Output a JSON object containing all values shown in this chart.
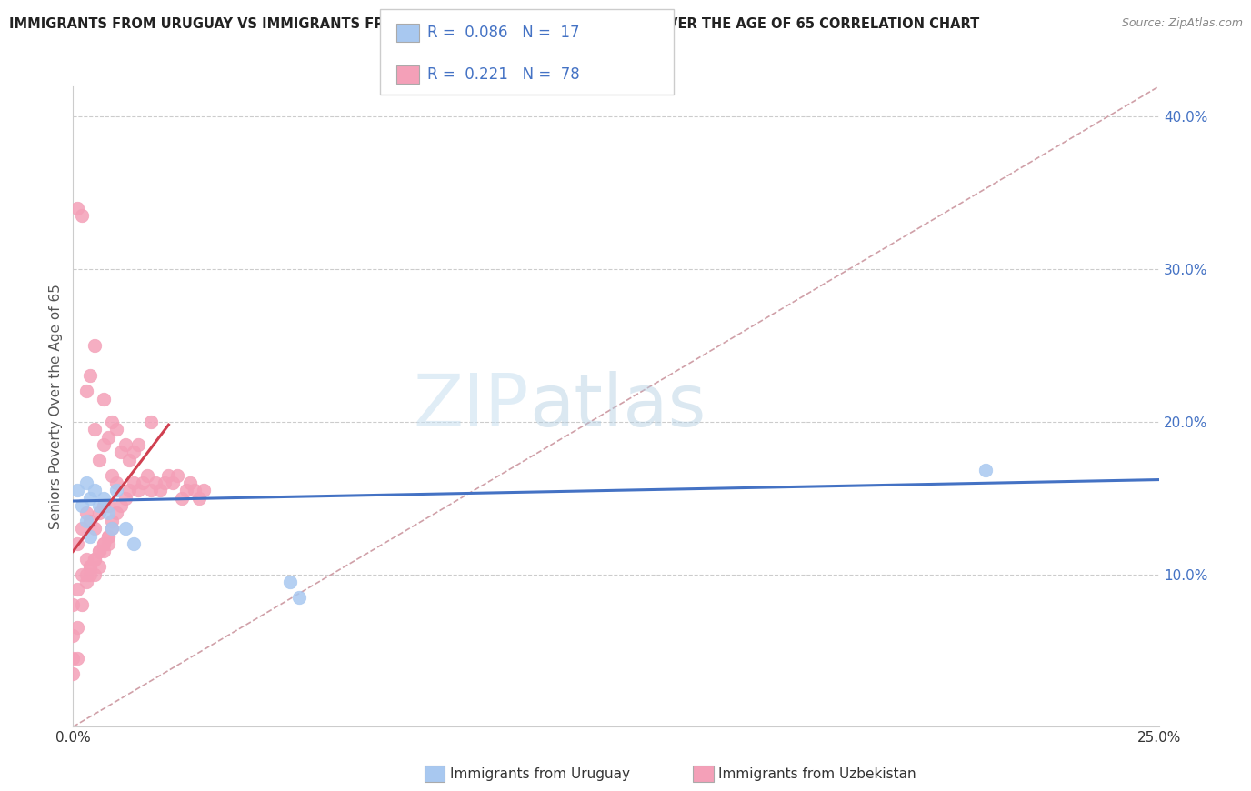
{
  "title": "IMMIGRANTS FROM URUGUAY VS IMMIGRANTS FROM UZBEKISTAN SENIORS POVERTY OVER THE AGE OF 65 CORRELATION CHART",
  "source": "Source: ZipAtlas.com",
  "ylabel": "Seniors Poverty Over the Age of 65",
  "xlim": [
    0.0,
    0.25
  ],
  "ylim": [
    0.0,
    0.42
  ],
  "r_uruguay": 0.086,
  "n_uruguay": 17,
  "r_uzbekistan": 0.221,
  "n_uzbekistan": 78,
  "color_uruguay": "#a8c8f0",
  "color_uzbekistan": "#f4a0b8",
  "line_color_uruguay": "#4472c4",
  "line_color_uzbekistan": "#d04050",
  "diagonal_color": "#d0a0a8",
  "watermark_zip": "ZIP",
  "watermark_atlas": "atlas",
  "legend_color": "#4472c4",
  "ytick_color": "#4472c4",
  "xtick_label_color": "#333333",
  "uruguay_x": [
    0.001,
    0.002,
    0.003,
    0.003,
    0.004,
    0.004,
    0.005,
    0.006,
    0.007,
    0.008,
    0.009,
    0.01,
    0.012,
    0.014,
    0.05,
    0.052,
    0.21
  ],
  "uruguay_y": [
    0.155,
    0.145,
    0.16,
    0.135,
    0.15,
    0.125,
    0.155,
    0.145,
    0.15,
    0.14,
    0.13,
    0.155,
    0.13,
    0.12,
    0.095,
    0.085,
    0.168
  ],
  "uzbekistan_x": [
    0.0,
    0.0,
    0.001,
    0.001,
    0.001,
    0.002,
    0.002,
    0.002,
    0.003,
    0.003,
    0.003,
    0.004,
    0.004,
    0.004,
    0.005,
    0.005,
    0.005,
    0.005,
    0.006,
    0.006,
    0.006,
    0.007,
    0.007,
    0.007,
    0.007,
    0.008,
    0.008,
    0.008,
    0.009,
    0.009,
    0.009,
    0.01,
    0.01,
    0.01,
    0.011,
    0.011,
    0.012,
    0.012,
    0.013,
    0.013,
    0.014,
    0.014,
    0.015,
    0.015,
    0.016,
    0.017,
    0.018,
    0.018,
    0.019,
    0.02,
    0.021,
    0.022,
    0.023,
    0.024,
    0.025,
    0.026,
    0.027,
    0.028,
    0.029,
    0.03,
    0.001,
    0.002,
    0.003,
    0.004,
    0.005,
    0.006,
    0.0,
    0.0,
    0.001,
    0.007,
    0.008,
    0.003,
    0.004,
    0.005,
    0.006,
    0.007,
    0.008,
    0.009
  ],
  "uzbekistan_y": [
    0.06,
    0.08,
    0.09,
    0.12,
    0.34,
    0.1,
    0.13,
    0.335,
    0.11,
    0.14,
    0.22,
    0.105,
    0.135,
    0.23,
    0.1,
    0.13,
    0.195,
    0.25,
    0.105,
    0.14,
    0.175,
    0.115,
    0.145,
    0.185,
    0.215,
    0.12,
    0.145,
    0.19,
    0.135,
    0.165,
    0.2,
    0.14,
    0.16,
    0.195,
    0.145,
    0.18,
    0.15,
    0.185,
    0.155,
    0.175,
    0.16,
    0.18,
    0.155,
    0.185,
    0.16,
    0.165,
    0.155,
    0.2,
    0.16,
    0.155,
    0.16,
    0.165,
    0.16,
    0.165,
    0.15,
    0.155,
    0.16,
    0.155,
    0.15,
    0.155,
    0.065,
    0.08,
    0.095,
    0.1,
    0.11,
    0.115,
    0.045,
    0.035,
    0.045,
    0.12,
    0.125,
    0.1,
    0.105,
    0.11,
    0.115,
    0.12,
    0.125,
    0.13
  ]
}
